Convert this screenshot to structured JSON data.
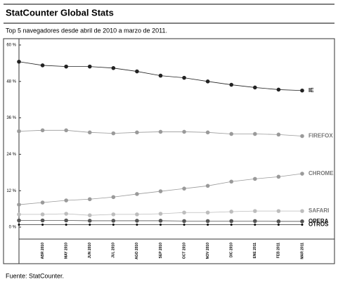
{
  "chart_data": {
    "type": "line",
    "title": "StatCounter Global Stats",
    "subtitle": "Top 5 navegadores desde abril de 2010 a marzo de 2011.",
    "source": "Fuente: StatCounter.",
    "categories": [
      null,
      "ABR 2010",
      "MAY 2010",
      "JUN 2010",
      "JUL 2010",
      "AGO 2010",
      "SEP 2010",
      "OCT 2010",
      "NOV 2010",
      "DIC 2010",
      "ENE 2011",
      "FEB 2011",
      "MAR 2011"
    ],
    "ylim": [
      0,
      60
    ],
    "yticks": [
      {
        "value": 0,
        "label": "0 %"
      },
      {
        "value": 12,
        "label": "12 %"
      },
      {
        "value": 24,
        "label": "24 %"
      },
      {
        "value": 36,
        "label": "36 %"
      },
      {
        "value": 48,
        "label": "48 %"
      },
      {
        "value": 60,
        "label": "60 %"
      }
    ],
    "grid": false,
    "series": [
      {
        "name": "IE",
        "color": "#222222",
        "values": [
          54.5,
          53.3,
          52.9,
          52.9,
          52.4,
          51.3,
          49.9,
          49.2,
          48.0,
          46.9,
          46.0,
          45.3,
          45.0
        ]
      },
      {
        "name": "FIREFOX",
        "color": "#9a9a9a",
        "values": [
          31.6,
          31.9,
          31.9,
          31.2,
          30.9,
          31.2,
          31.4,
          31.4,
          31.2,
          30.7,
          30.7,
          30.5,
          30.0
        ]
      },
      {
        "name": "CHROME",
        "color": "#9a9a9a",
        "values": [
          7.4,
          8.1,
          8.8,
          9.2,
          9.9,
          10.9,
          11.8,
          12.7,
          13.6,
          15.0,
          15.9,
          16.6,
          17.6
        ]
      },
      {
        "name": "SAFARI",
        "color": "#bdbdbd",
        "values": [
          4.2,
          4.2,
          4.4,
          3.9,
          4.2,
          4.2,
          4.4,
          4.8,
          4.8,
          5.1,
          5.3,
          5.3,
          5.3
        ]
      },
      {
        "name": "OPERA",
        "color": "#555555",
        "values": [
          2.2,
          2.2,
          2.2,
          2.1,
          2.1,
          2.1,
          2.1,
          2.0,
          2.0,
          2.0,
          2.0,
          1.9,
          1.9
        ]
      },
      {
        "name": "OTROS",
        "color": "#000000",
        "values": [
          0.8,
          0.8,
          0.8,
          0.8,
          0.8,
          0.8,
          0.8,
          0.8,
          0.8,
          0.8,
          0.8,
          0.8,
          0.8
        ]
      }
    ]
  }
}
